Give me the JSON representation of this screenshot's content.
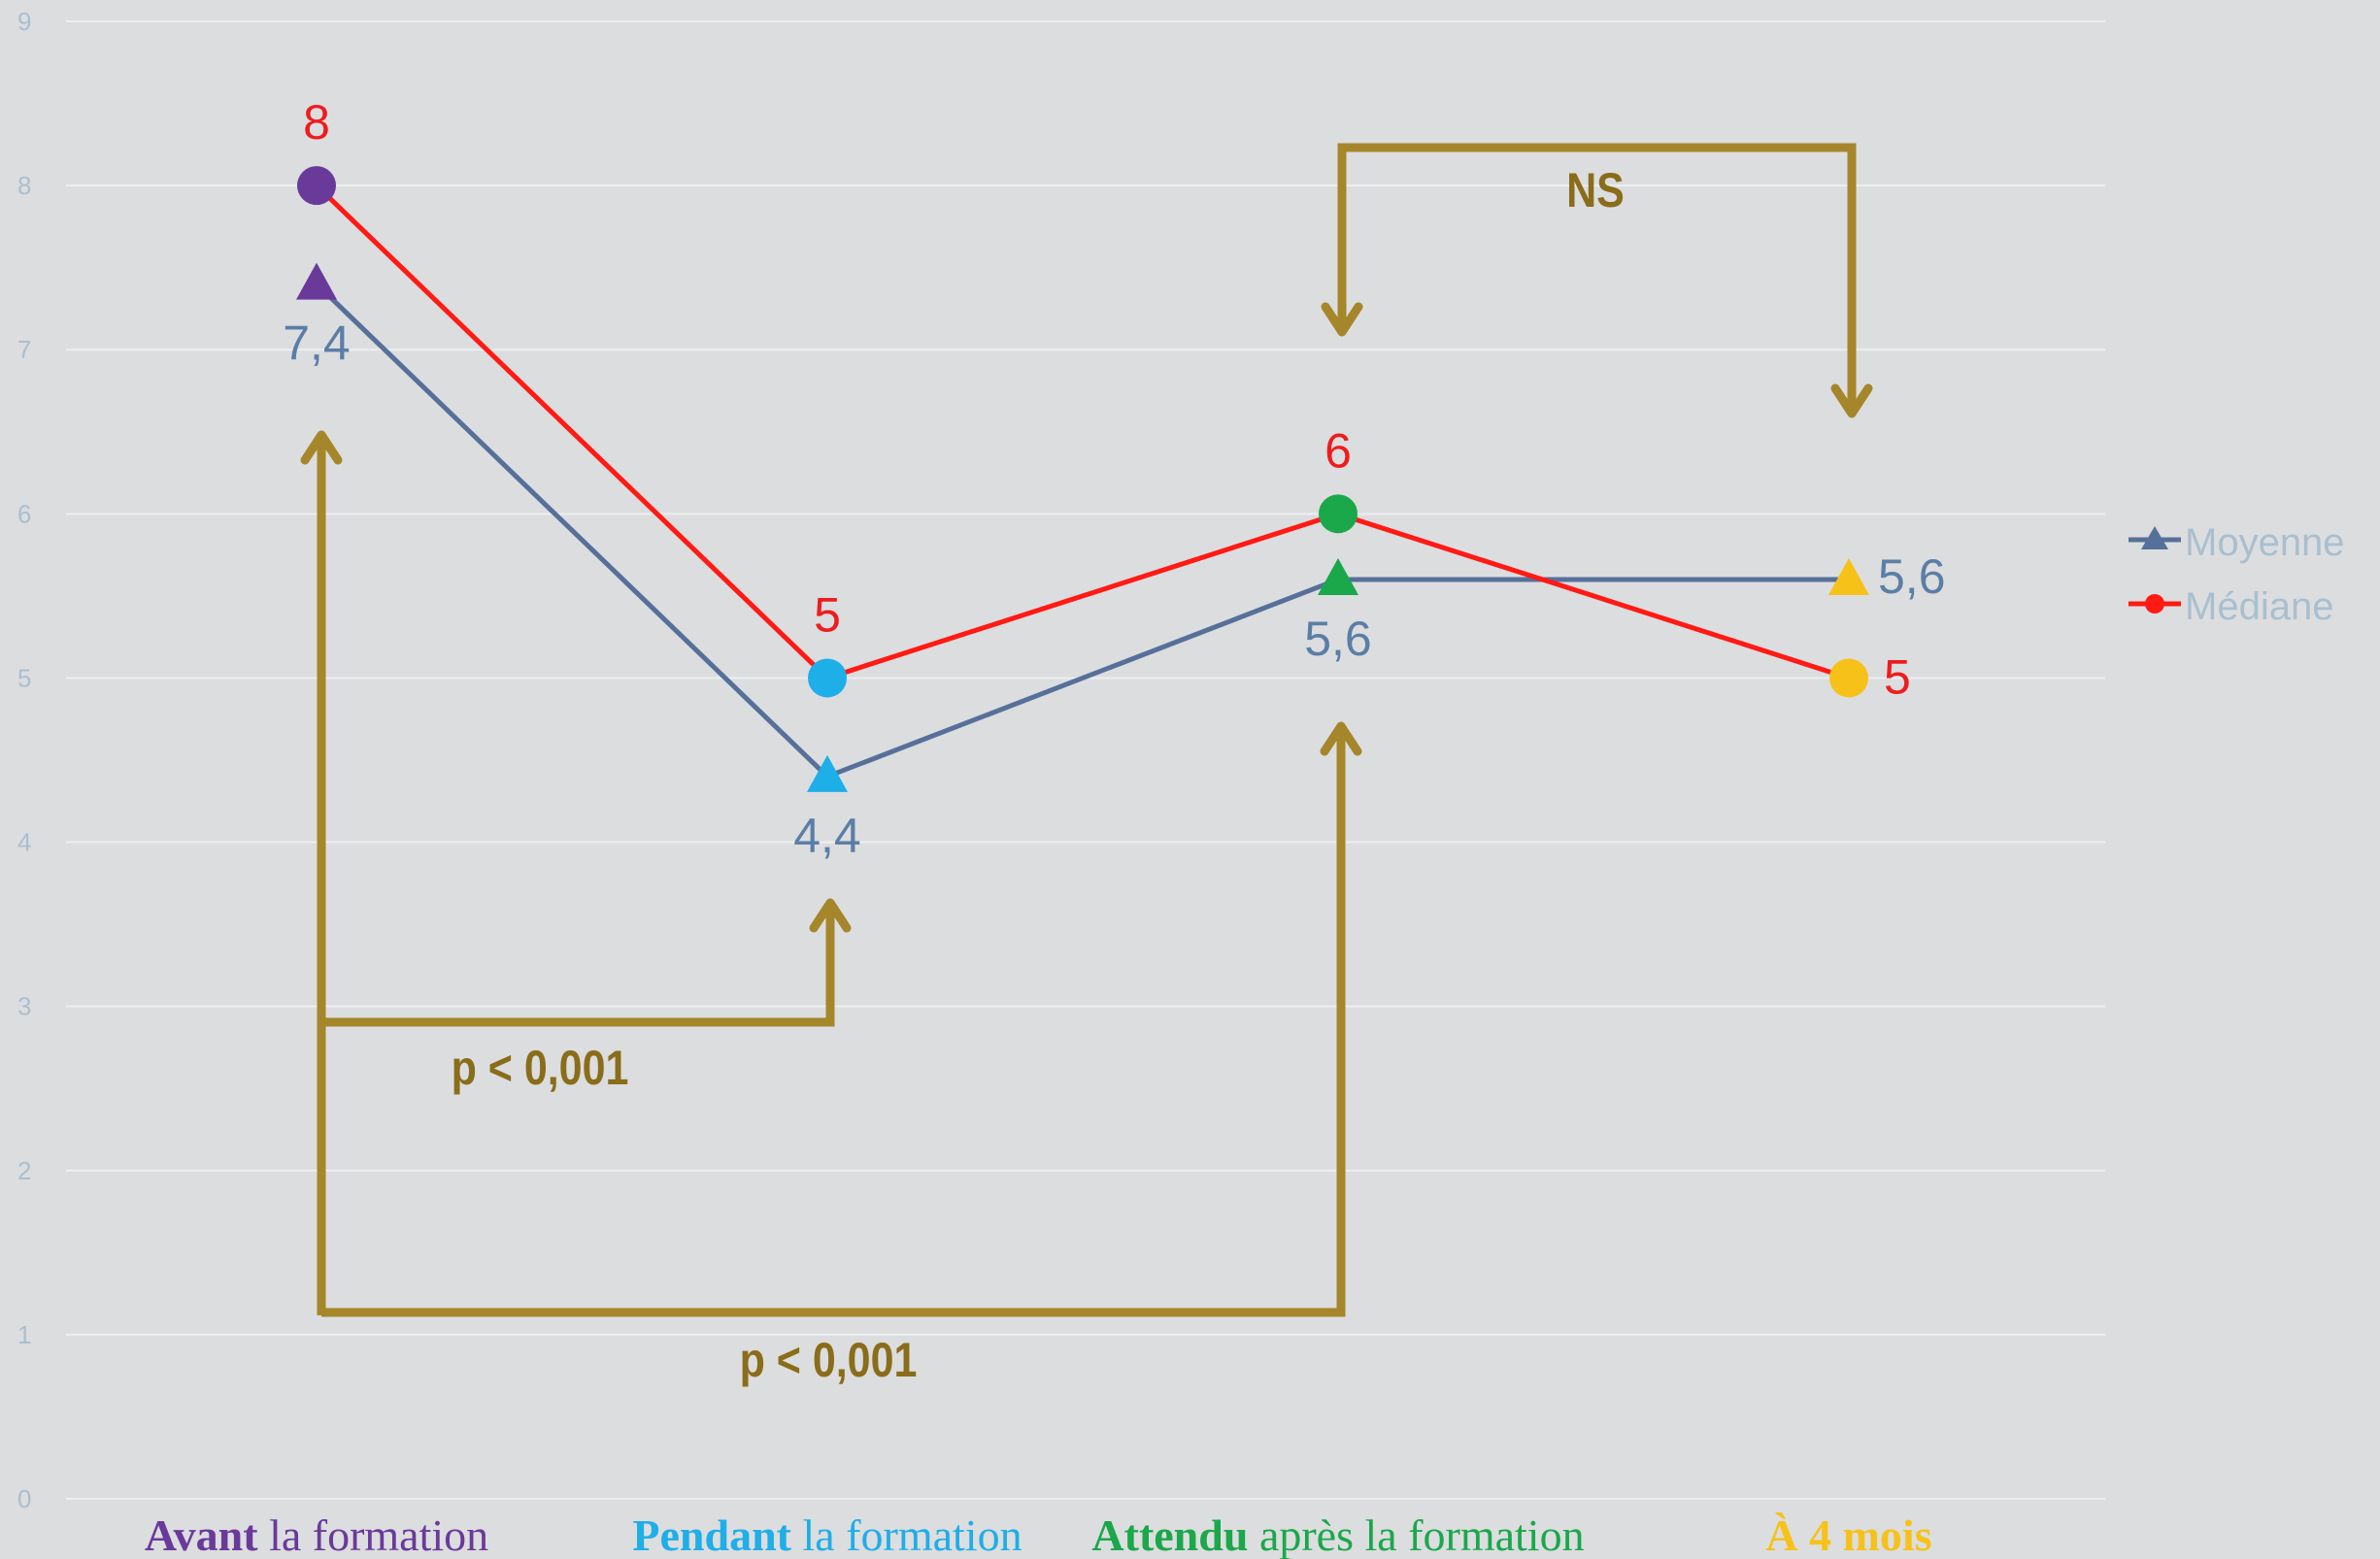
{
  "chart_data": {
    "type": "line",
    "categories": [
      {
        "bold": "Avant",
        "rest": " la formation",
        "color": "#6a3a9a"
      },
      {
        "bold": "Pendant",
        "rest": " la formation",
        "color": "#1eaee8"
      },
      {
        "bold": "Attendu",
        "rest": " après la formation",
        "color": "#1aa84a"
      },
      {
        "bold": "À 4 mois",
        "rest": "",
        "color": "#f6c21a"
      }
    ],
    "ylim": [
      0,
      9
    ],
    "yticks": [
      "0",
      "1",
      "2",
      "3",
      "4",
      "5",
      "6",
      "7",
      "8",
      "9"
    ],
    "grid": true,
    "legend_position": "right",
    "series": [
      {
        "name": "Moyenne",
        "marker": "triangle",
        "line_color": "#56709a",
        "label_color": "#5b7ea6",
        "values": [
          7.4,
          4.4,
          5.6,
          5.6
        ],
        "labels": [
          "7,4",
          "4,4",
          "5,6",
          "5,6"
        ]
      },
      {
        "name": "Médiane",
        "marker": "circle",
        "line_color": "#ff1a14",
        "label_color": "#ee1d1d",
        "values": [
          8,
          5,
          6,
          5
        ],
        "labels": [
          "8",
          "5",
          "6",
          "5"
        ]
      }
    ],
    "marker_colors": [
      "#6a3a9a",
      "#1eaee8",
      "#1aa84a",
      "#f6c21a"
    ],
    "annotations": [
      {
        "text": "p < 0,001",
        "from": 0,
        "to": 1
      },
      {
        "text": "p < 0,001",
        "from": 0,
        "to": 2
      },
      {
        "text": "NS",
        "from": 2,
        "to": 3
      }
    ],
    "annotation_color": "#8a6d1a",
    "arrow_color": "#a5862a",
    "axis_label_color": "#a9bfcf",
    "grid_color": "#eceef0"
  }
}
